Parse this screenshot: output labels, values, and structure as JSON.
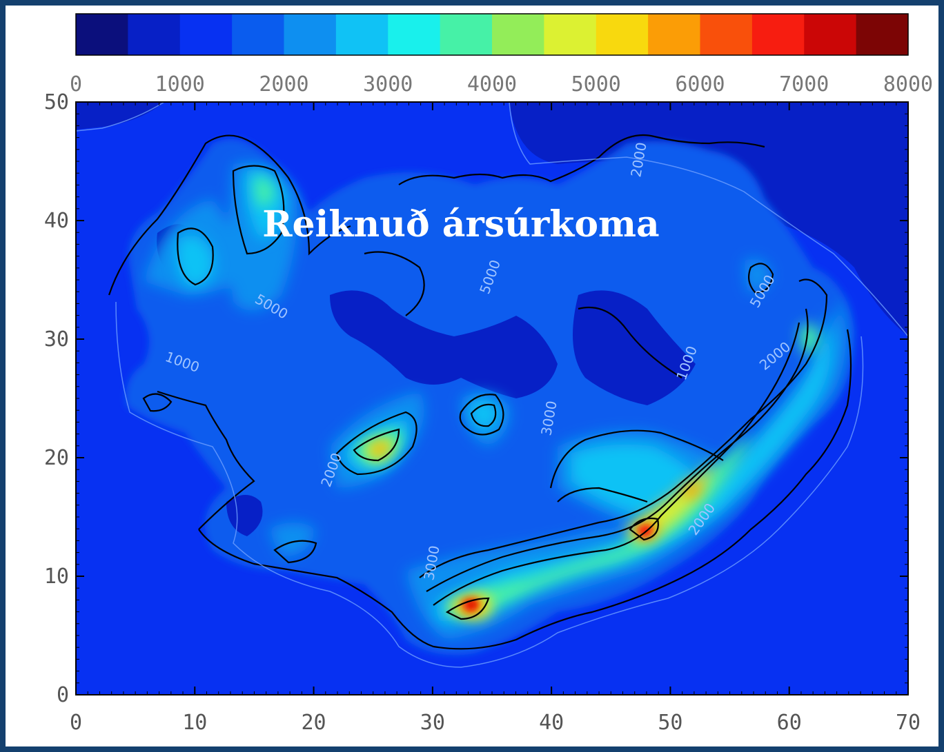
{
  "chart_data": {
    "type": "heatmap",
    "title": "Reiknuð ársúrkoma",
    "xlabel": "",
    "ylabel": "",
    "xlim": [
      0,
      70
    ],
    "ylim": [
      0,
      50
    ],
    "x_ticks": [
      "0",
      "10",
      "20",
      "30",
      "40",
      "50",
      "60",
      "70"
    ],
    "y_ticks": [
      "0",
      "10",
      "20",
      "30",
      "40",
      "50"
    ],
    "colorbar": {
      "min": 0,
      "max": 8000,
      "step": 500,
      "tick_labels": [
        "0",
        "1000",
        "2000",
        "3000",
        "4000",
        "5000",
        "6000",
        "7000",
        "8000"
      ],
      "colors": [
        "#0b0f7c",
        "#0720c6",
        "#0731f2",
        "#0a5cee",
        "#0e8ff0",
        "#10c2f5",
        "#19f0ec",
        "#46f1a7",
        "#93ed59",
        "#dcf132",
        "#f8d90e",
        "#fb9d06",
        "#f9500b",
        "#f71d10",
        "#cb0606",
        "#7c0505"
      ]
    },
    "contour_labels": [
      "1000",
      "1000",
      "2000",
      "2000",
      "2000",
      "2000",
      "3000",
      "3000",
      "5000",
      "5000",
      "5000"
    ],
    "peaks": [
      {
        "x": 33,
        "y": 8,
        "value": 7000
      },
      {
        "x": 48,
        "y": 14,
        "value": 7000
      },
      {
        "x": 26,
        "y": 21,
        "value": 5500
      },
      {
        "x": 53,
        "y": 18,
        "value": 5000
      },
      {
        "x": 34,
        "y": 24,
        "value": 3500
      },
      {
        "x": 15,
        "y": 42,
        "value": 3500
      },
      {
        "x": 11,
        "y": 38,
        "value": 3500
      }
    ]
  }
}
